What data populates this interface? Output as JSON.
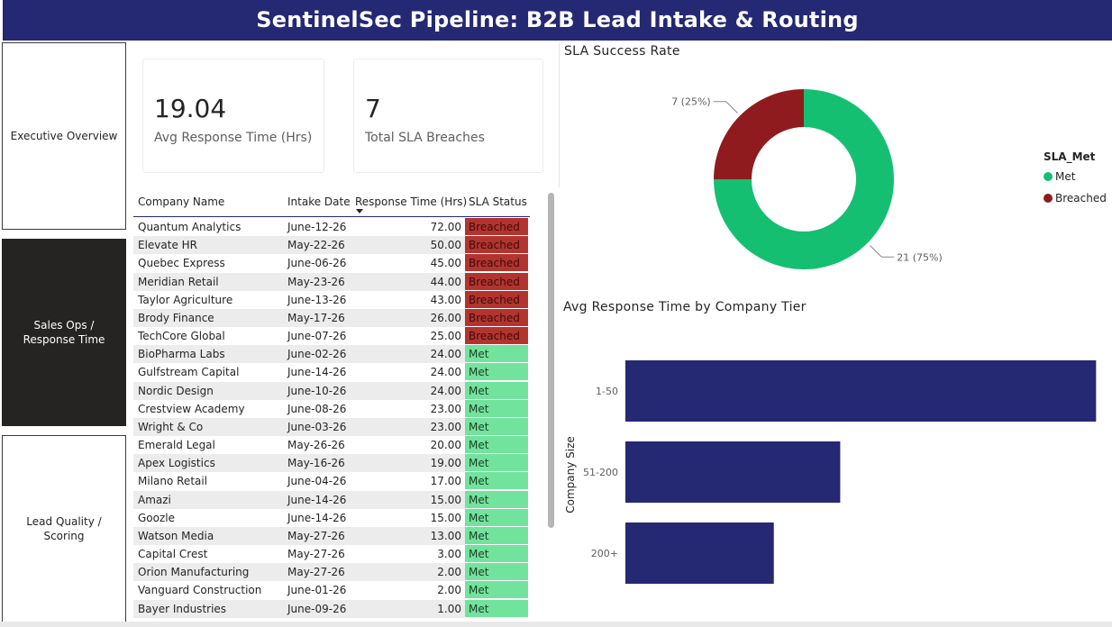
{
  "header": {
    "title": "SentinelSec Pipeline: B2B Lead Intake & Routing"
  },
  "nav": {
    "items": [
      {
        "label": "Executive Overview",
        "active": false
      },
      {
        "label": "Sales Ops / Response Time",
        "active": true
      },
      {
        "label": "Lead Quality / Scoring",
        "active": false
      }
    ]
  },
  "kpis": {
    "avg_response": {
      "value": "19.04",
      "label": "Avg Response Time (Hrs)"
    },
    "breaches": {
      "value": "7",
      "label": "Total SLA Breaches"
    }
  },
  "table": {
    "columns": [
      "Company Name",
      "Intake Date",
      "Response Time (Hrs)",
      "SLA Status"
    ],
    "rows": [
      [
        "Quantum Analytics",
        "June-12-26",
        "72.00",
        "Breached"
      ],
      [
        "Elevate HR",
        "May-22-26",
        "50.00",
        "Breached"
      ],
      [
        "Quebec Express",
        "June-06-26",
        "45.00",
        "Breached"
      ],
      [
        "Meridian Retail",
        "May-23-26",
        "44.00",
        "Breached"
      ],
      [
        "Taylor Agriculture",
        "June-13-26",
        "43.00",
        "Breached"
      ],
      [
        "Brody Finance",
        "May-17-26",
        "26.00",
        "Breached"
      ],
      [
        "TechCore Global",
        "June-07-26",
        "25.00",
        "Breached"
      ],
      [
        "BioPharma Labs",
        "June-02-26",
        "24.00",
        "Met"
      ],
      [
        "Gulfstream Capital",
        "June-14-26",
        "24.00",
        "Met"
      ],
      [
        "Nordic Design",
        "June-10-26",
        "24.00",
        "Met"
      ],
      [
        "Crestview Academy",
        "June-08-26",
        "23.00",
        "Met"
      ],
      [
        "Wright & Co",
        "June-03-26",
        "23.00",
        "Met"
      ],
      [
        "Emerald Legal",
        "May-26-26",
        "20.00",
        "Met"
      ],
      [
        "Apex Logistics",
        "May-16-26",
        "19.00",
        "Met"
      ],
      [
        "Milano Retail",
        "June-04-26",
        "17.00",
        "Met"
      ],
      [
        "Amazi",
        "June-14-26",
        "15.00",
        "Met"
      ],
      [
        "Goozle",
        "June-14-26",
        "15.00",
        "Met"
      ],
      [
        "Watson Media",
        "May-27-26",
        "13.00",
        "Met"
      ],
      [
        "Capital Crest",
        "May-27-26",
        "3.00",
        "Met"
      ],
      [
        "Orion Manufacturing",
        "May-27-26",
        "2.00",
        "Met"
      ],
      [
        "Vanguard Construction",
        "June-01-26",
        "2.00",
        "Met"
      ],
      [
        "Bayer Industries",
        "June-09-26",
        "1.00",
        "Met"
      ]
    ]
  },
  "colors": {
    "header_bg": "#252872",
    "met": "#15bf72",
    "breached": "#8f1b1e",
    "bar": "#252872",
    "sla_met_cell": "#72e39c",
    "sla_breached_cell": "#b3342f"
  },
  "chart_data": [
    {
      "type": "pie",
      "title": "SLA Success Rate",
      "legend_title": "SLA_Met",
      "legend_position": "right",
      "series": [
        {
          "name": "Met",
          "value": 21,
          "label": "21 (75%)",
          "color": "#15bf72"
        },
        {
          "name": "Breached",
          "value": 7,
          "label": "7 (25%)",
          "color": "#8f1b1e"
        }
      ]
    },
    {
      "type": "bar",
      "orientation": "horizontal",
      "title": "Avg Response Time by Company Tier",
      "ylabel": "Company Size",
      "xlabel": "",
      "categories": [
        "1-50",
        "51-200",
        "200+"
      ],
      "values": [
        24.1,
        11.0,
        7.6
      ],
      "xlim": [
        0,
        24.5
      ],
      "grid": false
    }
  ]
}
